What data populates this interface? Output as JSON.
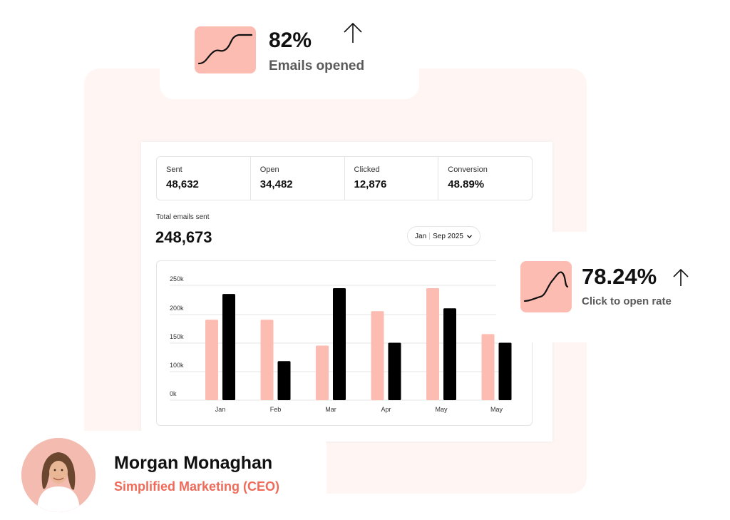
{
  "top_stat": {
    "value": "82%",
    "caption": "Emails opened"
  },
  "right_stat": {
    "value": "78.24%",
    "caption": "Click to open rate"
  },
  "metrics": [
    {
      "label": "Sent",
      "value": "48,632"
    },
    {
      "label": "Open",
      "value": "34,482"
    },
    {
      "label": "Clicked",
      "value": "12,876"
    },
    {
      "label": "Conversion",
      "value": "48.89%"
    }
  ],
  "total": {
    "label": "Total emails sent",
    "value": "248,673"
  },
  "date_range": {
    "start": "Jan",
    "end": "Sep 2025"
  },
  "person": {
    "name": "Morgan Monaghan",
    "role": "Simplified Marketing (CEO)"
  },
  "colors": {
    "accent": "#fdbcb2",
    "dark": "#000000",
    "role": "#ee6b5a",
    "panel": "#fff6f4"
  },
  "chart_data": {
    "type": "bar",
    "categories": [
      "Jan",
      "Feb",
      "Mar",
      "Apr",
      "May",
      "May"
    ],
    "series": [
      {
        "color": "#fdbcb2",
        "values": [
          190,
          190,
          145,
          205,
          245,
          165
        ]
      },
      {
        "color": "#000000",
        "values": [
          235,
          118,
          245,
          150,
          210,
          150
        ]
      }
    ],
    "yticks": [
      "0k",
      "100k",
      "150k",
      "200k",
      "250k"
    ],
    "ylim": [
      50,
      250
    ],
    "grid": true
  }
}
